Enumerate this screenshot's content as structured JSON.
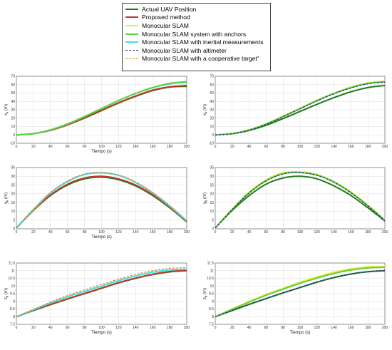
{
  "legend": {
    "placement": "top-center",
    "items": [
      {
        "name": "Actual UAV Position",
        "color": "#1f7a1f",
        "dash": "solid",
        "width": 2
      },
      {
        "name": "Proposed method",
        "color": "#c0392b",
        "dash": "solid",
        "width": 2
      },
      {
        "name": "Monocular SLAM",
        "color": "#f2ea3a",
        "dash": "solid",
        "width": 2
      },
      {
        "name": "Monocular SLAM system with anchors",
        "color": "#5ad23a",
        "dash": "solid",
        "width": 2
      },
      {
        "name": "Monocular SLAM with inertial measurements",
        "color": "#3fe0e8",
        "dash": "solid",
        "width": 2
      },
      {
        "name": "Monocular SLAM with altimeter",
        "color": "#2c2a8f",
        "dash": "dashed",
        "width": 1.2
      },
      {
        "name": "Monocular SLAM with a cooperative target",
        "sup": "*",
        "color": "#e0842a",
        "dash": "dashed",
        "width": 1.2
      }
    ]
  },
  "chart_data": [
    {
      "type": "line",
      "xlabel": "Tiempo (s)",
      "ylabel": "x",
      "ylabel_sub": "k",
      "ylabel_unit": " (m)",
      "xlim": [
        0,
        200
      ],
      "ylim": [
        -10,
        70
      ],
      "xticks": [
        0,
        20,
        40,
        60,
        80,
        100,
        120,
        140,
        160,
        180,
        200
      ],
      "yticks": [
        -10,
        0,
        10,
        20,
        30,
        40,
        50,
        60,
        70
      ],
      "grid": true,
      "x": [
        0,
        20,
        40,
        60,
        80,
        100,
        120,
        140,
        160,
        180,
        200
      ],
      "series": [
        {
          "ref": 0,
          "values": [
            0,
            1.5,
            5.5,
            12,
            20,
            29,
            38,
            46,
            53,
            57,
            58
          ]
        },
        {
          "ref": 1,
          "values": [
            0,
            1.5,
            5.5,
            12,
            20.5,
            29.5,
            38.5,
            46.5,
            53.5,
            57.5,
            59
          ]
        },
        {
          "ref": 4,
          "values": [
            0,
            1.6,
            6,
            13,
            22,
            31.5,
            41,
            49.5,
            56.5,
            61,
            63
          ]
        },
        {
          "ref": 6,
          "values": [
            0,
            1.6,
            6,
            13,
            22,
            31.5,
            41,
            49.5,
            56.5,
            61.5,
            64
          ]
        },
        {
          "ref": 3,
          "values": [
            0,
            1.6,
            6,
            13,
            22,
            31.5,
            41,
            49.5,
            56.5,
            61.5,
            63.5
          ]
        }
      ]
    },
    {
      "type": "line",
      "xlabel": "",
      "ylabel": "x",
      "ylabel_sub": "k",
      "ylabel_unit": " (m)",
      "xlim": [
        0,
        200
      ],
      "ylim": [
        -10,
        70
      ],
      "xticks": [
        0,
        20,
        40,
        60,
        80,
        100,
        120,
        140,
        160,
        180,
        200
      ],
      "yticks": [
        -10,
        0,
        10,
        20,
        30,
        40,
        50,
        60,
        70
      ],
      "grid": true,
      "x": [
        0,
        20,
        40,
        60,
        80,
        100,
        120,
        140,
        160,
        180,
        200
      ],
      "series": [
        {
          "ref": 0,
          "values": [
            0,
            1.4,
            5.3,
            11.5,
            19.5,
            28,
            36.5,
            44.5,
            51.5,
            56.5,
            59
          ]
        },
        {
          "ref": 2,
          "values": [
            0,
            1.6,
            6,
            13.2,
            22.5,
            32,
            41.5,
            50,
            57,
            62,
            64.5
          ]
        },
        {
          "ref": 3,
          "values": [
            0,
            1.6,
            5.9,
            13,
            22,
            31.5,
            41,
            49.5,
            56.5,
            61.5,
            63.5
          ]
        },
        {
          "ref": 5,
          "values": [
            0,
            1.5,
            5.7,
            12.6,
            21.5,
            31,
            40.5,
            49,
            56,
            61,
            63
          ]
        }
      ]
    },
    {
      "type": "line",
      "xlabel": "Tiempo (s)",
      "ylabel": "y",
      "ylabel_sub": "k",
      "ylabel_unit": " (m)",
      "xlim": [
        0,
        200
      ],
      "ylim": [
        0,
        35
      ],
      "xticks": [
        0,
        20,
        40,
        60,
        80,
        100,
        120,
        140,
        160,
        180,
        200
      ],
      "yticks": [
        0,
        5,
        10,
        15,
        20,
        25,
        30,
        35
      ],
      "grid": true,
      "x": [
        0,
        20,
        40,
        60,
        80,
        100,
        120,
        140,
        160,
        180,
        200
      ],
      "series": [
        {
          "ref": 0,
          "values": [
            0.5,
            10.5,
            19,
            25,
            28.5,
            29.5,
            28,
            24.5,
            19,
            12,
            4
          ]
        },
        {
          "ref": 1,
          "values": [
            0.5,
            10.6,
            19.3,
            25.5,
            29,
            30,
            28.5,
            25,
            19.5,
            12.5,
            4.5
          ]
        },
        {
          "ref": 3,
          "values": [
            0.5,
            11,
            20.5,
            27,
            31,
            32,
            30.5,
            26.5,
            20.5,
            13,
            4.5
          ]
        },
        {
          "ref": 4,
          "values": [
            0.5,
            11,
            20.5,
            27,
            31,
            32,
            30.5,
            26.5,
            20.5,
            13,
            4.5
          ]
        },
        {
          "ref": 6,
          "values": [
            0.5,
            11.1,
            20.7,
            27.3,
            31.3,
            32.2,
            30.7,
            26.7,
            20.7,
            13.2,
            4.6
          ]
        }
      ]
    },
    {
      "type": "line",
      "xlabel": "",
      "ylabel": "y",
      "ylabel_sub": "k",
      "ylabel_unit": " (m)",
      "xlim": [
        0,
        200
      ],
      "ylim": [
        0,
        35
      ],
      "xticks": [
        0,
        20,
        40,
        60,
        80,
        100,
        120,
        140,
        160,
        180,
        200
      ],
      "yticks": [
        0,
        5,
        10,
        15,
        20,
        25,
        30,
        35
      ],
      "grid": true,
      "x": [
        0,
        20,
        40,
        60,
        80,
        100,
        120,
        140,
        160,
        180,
        200
      ],
      "series": [
        {
          "ref": 0,
          "values": [
            0.5,
            10.5,
            19,
            25.5,
            29,
            30,
            28.5,
            24.5,
            19,
            12,
            4.5
          ]
        },
        {
          "ref": 2,
          "values": [
            0.5,
            11.3,
            21,
            28,
            32,
            32.5,
            31,
            27,
            21,
            13.5,
            5
          ]
        },
        {
          "ref": 3,
          "values": [
            0.5,
            11,
            20.5,
            27.5,
            31.5,
            32.2,
            30.7,
            26.7,
            20.7,
            13.2,
            4.8
          ]
        },
        {
          "ref": 5,
          "values": [
            0.5,
            11,
            20.5,
            27.3,
            31.3,
            32,
            30.5,
            26.5,
            20.5,
            13,
            4.6
          ]
        }
      ]
    },
    {
      "type": "line",
      "xlabel": "Tiempo (s)",
      "ylabel": "z",
      "ylabel_sub": "k",
      "ylabel_unit": " (m)",
      "xlim": [
        0,
        200
      ],
      "ylim": [
        7.5,
        11.5
      ],
      "xticks": [
        0,
        20,
        40,
        60,
        80,
        100,
        120,
        140,
        160,
        180,
        200
      ],
      "yticks": [
        7.5,
        8,
        8.5,
        9,
        9.5,
        10,
        10.5,
        11,
        11.5
      ],
      "grid": true,
      "x": [
        0,
        20,
        40,
        60,
        80,
        100,
        120,
        140,
        160,
        180,
        200
      ],
      "series": [
        {
          "ref": 0,
          "values": [
            8,
            8.4,
            8.78,
            9.15,
            9.5,
            9.85,
            10.2,
            10.5,
            10.75,
            10.92,
            11.0
          ]
        },
        {
          "ref": 1,
          "values": [
            8,
            8.42,
            8.8,
            9.17,
            9.52,
            9.87,
            10.22,
            10.52,
            10.77,
            10.95,
            11.02
          ]
        },
        {
          "ref": 4,
          "values": [
            8,
            8.45,
            8.9,
            9.3,
            9.65,
            10.0,
            10.35,
            10.65,
            10.9,
            11.05,
            11.1
          ]
        },
        {
          "ref": 6,
          "values": [
            8,
            8.48,
            8.95,
            9.38,
            9.75,
            10.1,
            10.45,
            10.75,
            11.0,
            11.15,
            11.2
          ]
        }
      ]
    },
    {
      "type": "line",
      "xlabel": "Tiempo (s)",
      "ylabel": "z",
      "ylabel_sub": "k",
      "ylabel_unit": " (m)",
      "xlim": [
        0,
        200
      ],
      "ylim": [
        7.5,
        11.5
      ],
      "xticks": [
        0,
        20,
        40,
        60,
        80,
        100,
        120,
        140,
        160,
        180,
        200
      ],
      "yticks": [
        7.5,
        8,
        8.5,
        9,
        9.5,
        10,
        10.5,
        11,
        11.5
      ],
      "grid": true,
      "x": [
        0,
        20,
        40,
        60,
        80,
        100,
        120,
        140,
        160,
        180,
        200
      ],
      "series": [
        {
          "ref": 0,
          "values": [
            8,
            8.4,
            8.8,
            9.18,
            9.55,
            9.9,
            10.25,
            10.55,
            10.78,
            10.93,
            11.0
          ]
        },
        {
          "ref": 2,
          "values": [
            8,
            8.5,
            9.0,
            9.45,
            9.85,
            10.25,
            10.6,
            10.9,
            11.12,
            11.25,
            11.28
          ]
        },
        {
          "ref": 3,
          "values": [
            8,
            8.48,
            8.95,
            9.4,
            9.8,
            10.18,
            10.52,
            10.82,
            11.05,
            11.18,
            11.22
          ]
        },
        {
          "ref": 5,
          "values": [
            8,
            8.42,
            8.82,
            9.2,
            9.57,
            9.92,
            10.27,
            10.57,
            10.8,
            10.95,
            11.02
          ]
        }
      ]
    }
  ]
}
